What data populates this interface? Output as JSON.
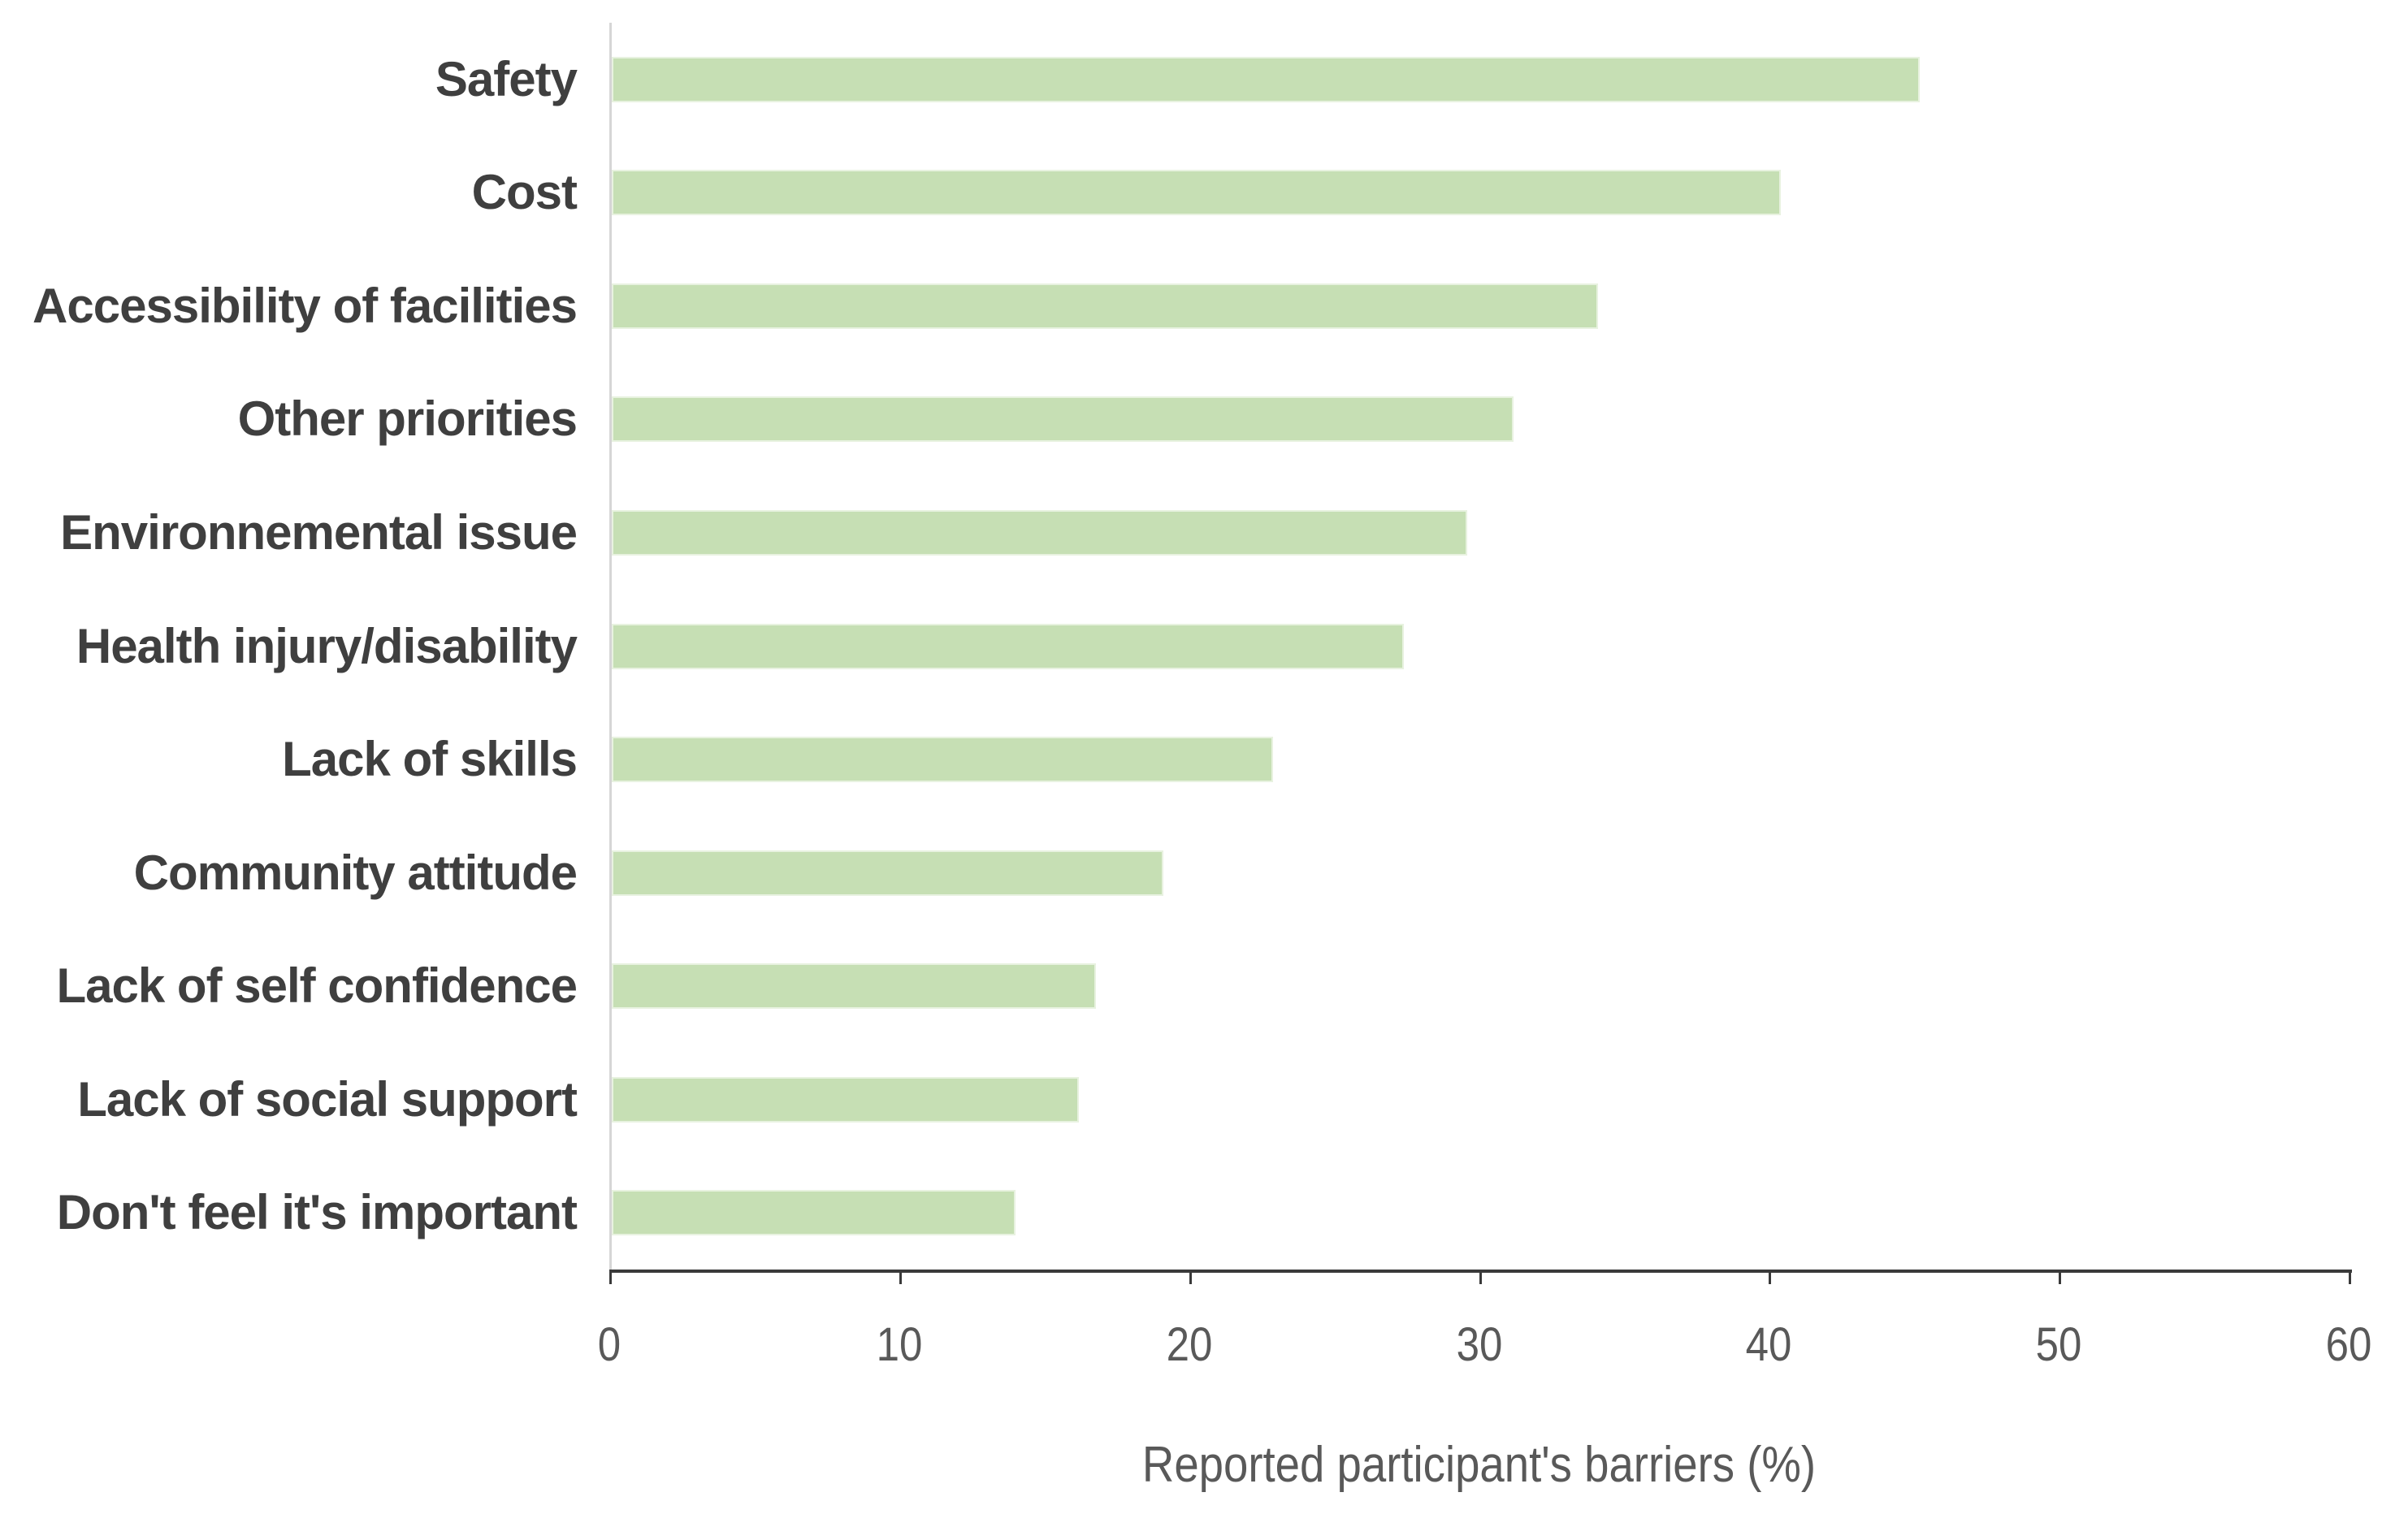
{
  "chart_data": {
    "type": "bar",
    "orientation": "horizontal",
    "title": "",
    "xlabel": "Reported participant's barriers (%)",
    "ylabel": "",
    "categories": [
      "Safety",
      "Cost",
      "Accessibility of facilities",
      "Other priorities",
      "Environnemental issue",
      "Health injury/disability",
      "Lack of skills",
      "Community attitude",
      "Lack of self confidence",
      "Lack of social support",
      "Don't feel it's important"
    ],
    "values": [
      45.2,
      40.4,
      34.1,
      31.2,
      29.6,
      27.4,
      22.9,
      19.1,
      16.8,
      16.2,
      14
    ],
    "xlim": [
      0,
      60
    ],
    "x_ticks": [
      0,
      10,
      20,
      30,
      40,
      50,
      60
    ],
    "grid": false,
    "legend": "none",
    "bar_color": "#c6dfb4",
    "bar_border_color": "#e8f2e0",
    "axis_line_color": "#3a3a3a",
    "label_color": "#3f3f3f",
    "tick_label_color": "#595959"
  }
}
